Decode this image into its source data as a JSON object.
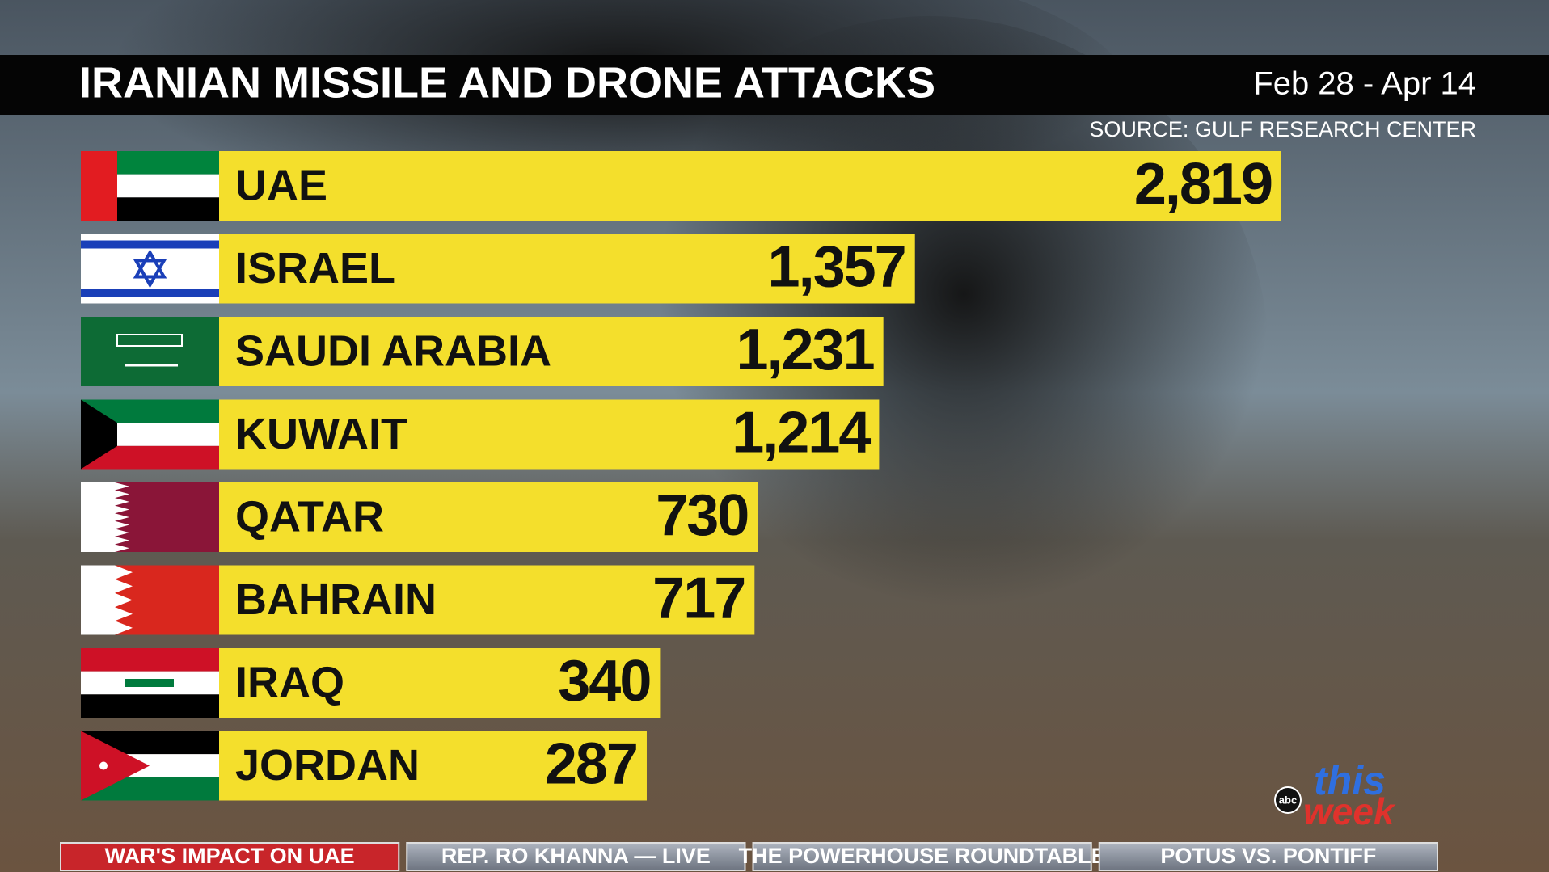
{
  "chart_data": {
    "type": "bar",
    "title": "IRANIAN MISSILE AND DRONE ATTACKS",
    "subtitle": "Feb 28 - Apr 14",
    "source": "SOURCE: GULF RESEARCH CENTER",
    "categories": [
      "UAE",
      "ISRAEL",
      "SAUDI ARABIA",
      "KUWAIT",
      "QATAR",
      "BAHRAIN",
      "IRAQ",
      "JORDAN"
    ],
    "values": [
      2819,
      1357,
      1231,
      1214,
      730,
      717,
      340,
      287
    ],
    "value_labels": [
      "2,819",
      "1,357",
      "1,231",
      "1,214",
      "730",
      "717",
      "340",
      "287"
    ],
    "color": "#f4df2c"
  },
  "ticker": [
    "WAR'S IMPACT ON UAE",
    "REP. RO KHANNA — LIVE",
    "THE POWERHOUSE ROUNDTABLE",
    "POTUS VS. PONTIFF"
  ],
  "logo": {
    "network": "abc",
    "show_top": "this",
    "show_bottom": "week"
  }
}
